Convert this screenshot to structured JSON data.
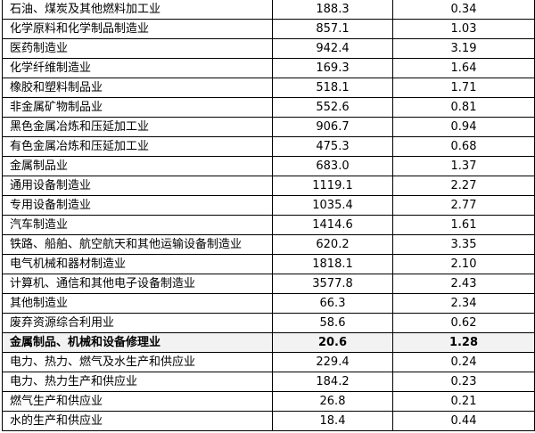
{
  "table": {
    "rows": [
      {
        "name": "石油、煤炭及其他燃料加工业",
        "value": "188.3",
        "ratio": "0.34"
      },
      {
        "name": "化学原料和化学制品制造业",
        "value": "857.1",
        "ratio": "1.03"
      },
      {
        "name": "医药制造业",
        "value": "942.4",
        "ratio": "3.19"
      },
      {
        "name": "化学纤维制造业",
        "value": "169.3",
        "ratio": "1.64"
      },
      {
        "name": "橡胶和塑料制品业",
        "value": "518.1",
        "ratio": "1.71"
      },
      {
        "name": "非金属矿物制品业",
        "value": "552.6",
        "ratio": "0.81"
      },
      {
        "name": "黑色金属冶炼和压延加工业",
        "value": "906.7",
        "ratio": "0.94"
      },
      {
        "name": "有色金属冶炼和压延加工业",
        "value": "475.3",
        "ratio": "0.68"
      },
      {
        "name": "金属制品业",
        "value": "683.0",
        "ratio": "1.37"
      },
      {
        "name": "通用设备制造业",
        "value": "1119.1",
        "ratio": "2.27"
      },
      {
        "name": "专用设备制造业",
        "value": "1035.4",
        "ratio": "2.77"
      },
      {
        "name": "汽车制造业",
        "value": "1414.6",
        "ratio": "1.61"
      },
      {
        "name": "铁路、船舶、航空航天和其他运输设备制造业",
        "value": "620.2",
        "ratio": "3.35"
      },
      {
        "name": "电气机械和器材制造业",
        "value": "1818.1",
        "ratio": "2.10"
      },
      {
        "name": "计算机、通信和其他电子设备制造业",
        "value": "3577.8",
        "ratio": "2.43"
      },
      {
        "name": "其他制造业",
        "value": "66.3",
        "ratio": "2.34"
      },
      {
        "name": "废弃资源综合利用业",
        "value": "58.6",
        "ratio": "0.62"
      },
      {
        "name": "金属制品、机械和设备修理业",
        "value": "20.6",
        "ratio": "1.28",
        "highlighted": true
      },
      {
        "name": "电力、热力、燃气及水生产和供应业",
        "value": "229.4",
        "ratio": "0.24"
      },
      {
        "name": "电力、热力生产和供应业",
        "value": "184.2",
        "ratio": "0.23"
      },
      {
        "name": "燃气生产和供应业",
        "value": "26.8",
        "ratio": "0.21"
      },
      {
        "name": "水的生产和供应业",
        "value": "18.4",
        "ratio": "0.44"
      }
    ],
    "highlight_color": "#f2f2f2"
  }
}
